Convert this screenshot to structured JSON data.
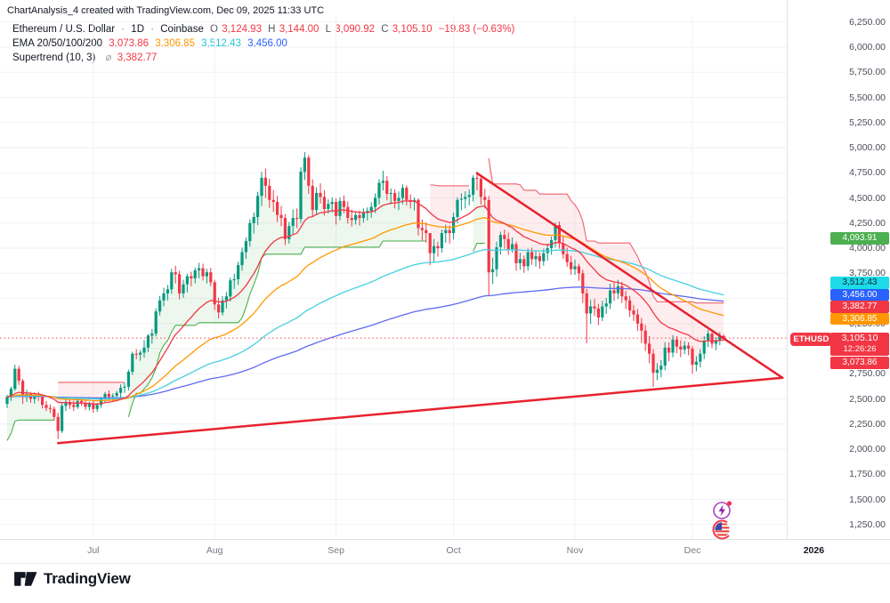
{
  "header": {
    "title": "ChartAnalysis_4 created with TradingView.com, Dec 09, 2025 11:33 UTC"
  },
  "legend": {
    "symbol_row": {
      "name": "Ethereum / U.S. Dollar",
      "sep1": "·",
      "interval": "1D",
      "sep2": "·",
      "exchange": "Coinbase",
      "o_letter": "O",
      "o": "3,124.93",
      "h_letter": "H",
      "h": "3,144.00",
      "l_letter": "L",
      "l": "3,090.92",
      "c_letter": "C",
      "c": "3,105.10",
      "change": "−19.83 (−0.63%)"
    },
    "ema_row": {
      "label": "EMA 20/50/100/200",
      "v20": "3,073.86",
      "v50": "3,306.85",
      "v100": "3,512.43",
      "v200": "3,456.00"
    },
    "supertrend_row": {
      "label": "Supertrend (10, 3)",
      "marker": "⌀",
      "value": "3,382.77"
    }
  },
  "price_axis": {
    "ticks": [
      {
        "price": 6250,
        "label": "6,250.00"
      },
      {
        "price": 6000,
        "label": "6,000.00"
      },
      {
        "price": 5750,
        "label": "5,750.00"
      },
      {
        "price": 5500,
        "label": "5,500.00"
      },
      {
        "price": 5250,
        "label": "5,250.00"
      },
      {
        "price": 5000,
        "label": "5,000.00"
      },
      {
        "price": 4750,
        "label": "4,750.00"
      },
      {
        "price": 4500,
        "label": "4,500.00"
      },
      {
        "price": 4250,
        "label": "4,250.00"
      },
      {
        "price": 4000,
        "label": "4,000.00"
      },
      {
        "price": 3750,
        "label": "3,750.00"
      },
      {
        "price": 3500,
        "label": "3,500.00"
      },
      {
        "price": 3250,
        "label": "3,250.00"
      },
      {
        "price": 3000,
        "label": "3,000.00"
      },
      {
        "price": 2750,
        "label": "2,750.00"
      },
      {
        "price": 2500,
        "label": "2,500.00"
      },
      {
        "price": 2250,
        "label": "2,250.00"
      },
      {
        "price": 2000,
        "label": "2,000.00"
      },
      {
        "price": 1750,
        "label": "1,750.00"
      },
      {
        "price": 1500,
        "label": "1,500.00"
      },
      {
        "price": 1250,
        "label": "1,250.00"
      }
    ],
    "badges": [
      {
        "label": "4,093.91",
        "bg": "#4caf50",
        "fg": "#ffffff",
        "y": 268
      },
      {
        "label": "3,512.43",
        "bg": "#1ddbe8",
        "fg": "#0b2830",
        "y": 318
      },
      {
        "label": "3,456.00",
        "bg": "#2962ff",
        "fg": "#ffffff",
        "y": 331.5
      },
      {
        "label": "3,382.77",
        "bg": "#f23645",
        "fg": "#ffffff",
        "y": 345
      },
      {
        "label": "3,306.85",
        "bg": "#ff9800",
        "fg": "#ffffff",
        "y": 358.5
      }
    ],
    "price_label": {
      "symbol": "ETHUSD",
      "price": "3,105.10",
      "countdown": "12:26:26",
      "bg": "#f23645",
      "y": 374
    },
    "ema20_label": {
      "label": "3,073.86",
      "bg": "#f23645",
      "y": 401
    }
  },
  "time_axis": {
    "months": [
      {
        "label": "Jul",
        "day": 22
      },
      {
        "label": "Aug",
        "day": 53
      },
      {
        "label": "Sep",
        "day": 84
      },
      {
        "label": "Oct",
        "day": 114
      },
      {
        "label": "Nov",
        "day": 145
      },
      {
        "label": "Dec",
        "day": 175
      }
    ],
    "year": {
      "label": "2026",
      "day": 206
    }
  },
  "brand": {
    "name": "TradingView"
  },
  "markers": {
    "lightning": "event-lightning",
    "flag": "us-economic-event"
  },
  "colors": {
    "up": "#089981",
    "down": "#f23645",
    "ema20": "#f23645",
    "ema50": "#ff9800",
    "ema100": "#45d0e0",
    "ema200": "#5f6af0",
    "st_up": "#4caf50",
    "st_down": "#f0606c",
    "fill_up": "rgba(76,175,80,0.10)",
    "fill_down": "rgba(242,54,69,0.09)",
    "trendline": "#e8212e",
    "grid": "#f0f2f6",
    "last_price": "#f23645"
  },
  "chart_data": {
    "type": "candlestick",
    "title": "Ethereum / U.S. Dollar · 1D · Coinbase",
    "ylim": [
      1150,
      6300
    ],
    "grid": true,
    "indicators": {
      "ema_periods": [
        20,
        50,
        100,
        200
      ],
      "supertrend": {
        "atr_period": 10,
        "multiplier": 3
      }
    },
    "last_price_line": {
      "price": 3105.1
    },
    "trendlines": [
      {
        "from": {
          "day": 13,
          "price": 2060
        },
        "to": {
          "day": 198,
          "price": 2710
        }
      },
      {
        "from": {
          "day": 120,
          "price": 4745
        },
        "to": {
          "day": 198,
          "price": 2710
        }
      }
    ],
    "first_open": 2450,
    "candles_hlc": [
      [
        2540,
        2410,
        2520
      ],
      [
        2620,
        2480,
        2600
      ],
      [
        2840,
        2580,
        2800
      ],
      [
        2830,
        2640,
        2680
      ],
      [
        2700,
        2450,
        2520
      ],
      [
        2590,
        2470,
        2550
      ],
      [
        2570,
        2460,
        2500
      ],
      [
        2565,
        2455,
        2540
      ],
      [
        2570,
        2480,
        2520
      ],
      [
        2545,
        2405,
        2440
      ],
      [
        2480,
        2380,
        2410
      ],
      [
        2445,
        2360,
        2400
      ],
      [
        2425,
        2285,
        2320
      ],
      [
        2360,
        2100,
        2180
      ],
      [
        2455,
        2160,
        2430
      ],
      [
        2505,
        2380,
        2470
      ],
      [
        2500,
        2400,
        2440
      ],
      [
        2480,
        2380,
        2420
      ],
      [
        2505,
        2400,
        2480
      ],
      [
        2520,
        2430,
        2460
      ],
      [
        2480,
        2390,
        2420
      ],
      [
        2470,
        2385,
        2450
      ],
      [
        2480,
        2360,
        2400
      ],
      [
        2460,
        2370,
        2440
      ],
      [
        2520,
        2410,
        2500
      ],
      [
        2570,
        2460,
        2550
      ],
      [
        2585,
        2480,
        2520
      ],
      [
        2555,
        2470,
        2530
      ],
      [
        2580,
        2490,
        2560
      ],
      [
        2645,
        2510,
        2610
      ],
      [
        2660,
        2560,
        2620
      ],
      [
        2790,
        2585,
        2770
      ],
      [
        2970,
        2740,
        2950
      ],
      [
        2995,
        2895,
        2940
      ],
      [
        2985,
        2880,
        2960
      ],
      [
        3085,
        2910,
        3010
      ],
      [
        3145,
        2965,
        3130
      ],
      [
        3195,
        3050,
        3150
      ],
      [
        3400,
        3120,
        3370
      ],
      [
        3525,
        3330,
        3480
      ],
      [
        3605,
        3420,
        3550
      ],
      [
        3635,
        3480,
        3590
      ],
      [
        3795,
        3545,
        3760
      ],
      [
        3825,
        3650,
        3740
      ],
      [
        3775,
        3490,
        3550
      ],
      [
        3685,
        3505,
        3640
      ],
      [
        3745,
        3560,
        3720
      ],
      [
        3765,
        3620,
        3700
      ],
      [
        3805,
        3650,
        3780
      ],
      [
        3855,
        3700,
        3800
      ],
      [
        3845,
        3680,
        3720
      ],
      [
        3795,
        3650,
        3760
      ],
      [
        3805,
        3620,
        3660
      ],
      [
        3685,
        3385,
        3440
      ],
      [
        3505,
        3300,
        3360
      ],
      [
        3525,
        3330,
        3480
      ],
      [
        3565,
        3400,
        3520
      ],
      [
        3705,
        3470,
        3680
      ],
      [
        3745,
        3595,
        3690
      ],
      [
        3865,
        3635,
        3830
      ],
      [
        4005,
        3775,
        3960
      ],
      [
        4105,
        3895,
        4070
      ],
      [
        4285,
        4015,
        4250
      ],
      [
        4355,
        4145,
        4310
      ],
      [
        4560,
        4230,
        4520
      ],
      [
        4760,
        4420,
        4700
      ],
      [
        4790,
        4500,
        4620
      ],
      [
        4690,
        4400,
        4480
      ],
      [
        4580,
        4360,
        4460
      ],
      [
        4520,
        4260,
        4330
      ],
      [
        4420,
        4220,
        4300
      ],
      [
        4340,
        4030,
        4090
      ],
      [
        4260,
        4045,
        4220
      ],
      [
        4385,
        4140,
        4300
      ],
      [
        4395,
        4200,
        4290
      ],
      [
        4805,
        4250,
        4760
      ],
      [
        4956,
        4680,
        4900
      ],
      [
        4925,
        4540,
        4620
      ],
      [
        4685,
        4310,
        4380
      ],
      [
        4605,
        4340,
        4550
      ],
      [
        4645,
        4445,
        4510
      ],
      [
        4575,
        4325,
        4390
      ],
      [
        4485,
        4345,
        4440
      ],
      [
        4505,
        4355,
        4460
      ],
      [
        4495,
        4235,
        4320
      ],
      [
        4505,
        4275,
        4470
      ],
      [
        4525,
        4345,
        4410
      ],
      [
        4465,
        4245,
        4300
      ],
      [
        4385,
        4215,
        4280
      ],
      [
        4365,
        4235,
        4330
      ],
      [
        4375,
        4225,
        4300
      ],
      [
        4395,
        4255,
        4350
      ],
      [
        4405,
        4275,
        4370
      ],
      [
        4455,
        4300,
        4410
      ],
      [
        4545,
        4350,
        4500
      ],
      [
        4685,
        4435,
        4650
      ],
      [
        4770,
        4575,
        4670
      ],
      [
        4715,
        4475,
        4540
      ],
      [
        4595,
        4435,
        4550
      ],
      [
        4585,
        4395,
        4470
      ],
      [
        4565,
        4380,
        4500
      ],
      [
        4635,
        4435,
        4600
      ],
      [
        4625,
        4425,
        4480
      ],
      [
        4535,
        4395,
        4460
      ],
      [
        4505,
        4375,
        4480
      ],
      [
        4495,
        4125,
        4200
      ],
      [
        4285,
        4075,
        4180
      ],
      [
        4255,
        4055,
        4150
      ],
      [
        4130,
        3830,
        3950
      ],
      [
        4090,
        3865,
        4020
      ],
      [
        4065,
        3915,
        4000
      ],
      [
        4185,
        3955,
        4150
      ],
      [
        4235,
        4055,
        4180
      ],
      [
        4225,
        4045,
        4150
      ],
      [
        4355,
        4085,
        4310
      ],
      [
        4505,
        4245,
        4480
      ],
      [
        4545,
        4375,
        4490
      ],
      [
        4565,
        4395,
        4510
      ],
      [
        4585,
        4425,
        4530
      ],
      [
        4725,
        4465,
        4700
      ],
      [
        4762,
        4575,
        4690
      ],
      [
        4715,
        4435,
        4510
      ],
      [
        4590,
        4395,
        4480
      ],
      [
        4520,
        3520,
        3760
      ],
      [
        3905,
        3645,
        3790
      ],
      [
        4065,
        3715,
        4010
      ],
      [
        4165,
        3935,
        4130
      ],
      [
        4185,
        3995,
        4090
      ],
      [
        4155,
        3935,
        3990
      ],
      [
        4105,
        3955,
        4040
      ],
      [
        4065,
        3775,
        3850
      ],
      [
        3955,
        3785,
        3890
      ],
      [
        3925,
        3755,
        3820
      ],
      [
        3995,
        3775,
        3960
      ],
      [
        4005,
        3835,
        3890
      ],
      [
        3975,
        3815,
        3920
      ],
      [
        3955,
        3795,
        3870
      ],
      [
        3995,
        3825,
        3950
      ],
      [
        4045,
        3875,
        4000
      ],
      [
        4115,
        3935,
        4080
      ],
      [
        4255,
        4005,
        4230
      ],
      [
        4265,
        3995,
        4050
      ],
      [
        4125,
        3895,
        3940
      ],
      [
        4005,
        3815,
        3860
      ],
      [
        3925,
        3735,
        3790
      ],
      [
        3885,
        3735,
        3820
      ],
      [
        3845,
        3675,
        3750
      ],
      [
        3785,
        3455,
        3550
      ],
      [
        3595,
        3055,
        3350
      ],
      [
        3485,
        3245,
        3420
      ],
      [
        3495,
        3325,
        3400
      ],
      [
        3445,
        3235,
        3310
      ],
      [
        3475,
        3275,
        3420
      ],
      [
        3505,
        3345,
        3450
      ],
      [
        3645,
        3395,
        3580
      ],
      [
        3655,
        3475,
        3550
      ],
      [
        3685,
        3495,
        3620
      ],
      [
        3665,
        3455,
        3520
      ],
      [
        3575,
        3395,
        3480
      ],
      [
        3525,
        3315,
        3380
      ],
      [
        3435,
        3275,
        3340
      ],
      [
        3395,
        3175,
        3250
      ],
      [
        3305,
        3055,
        3180
      ],
      [
        3235,
        2975,
        3050
      ],
      [
        3125,
        2855,
        2950
      ],
      [
        2995,
        2620,
        2760
      ],
      [
        2855,
        2685,
        2790
      ],
      [
        2885,
        2715,
        2830
      ],
      [
        3065,
        2785,
        3010
      ],
      [
        3065,
        2875,
        2960
      ],
      [
        3135,
        2915,
        3090
      ],
      [
        3125,
        2955,
        3020
      ],
      [
        3085,
        2915,
        2990
      ],
      [
        3075,
        2945,
        3030
      ],
      [
        3065,
        2935,
        3000
      ],
      [
        3025,
        2750,
        2840
      ],
      [
        2925,
        2775,
        2870
      ],
      [
        2995,
        2815,
        2950
      ],
      [
        3125,
        2895,
        3080
      ],
      [
        3185,
        3015,
        3150
      ],
      [
        3165,
        3005,
        3050
      ],
      [
        3115,
        2985,
        3080
      ],
      [
        3165,
        3035,
        3125
      ],
      [
        3144,
        3090.92,
        3105.1
      ]
    ]
  }
}
